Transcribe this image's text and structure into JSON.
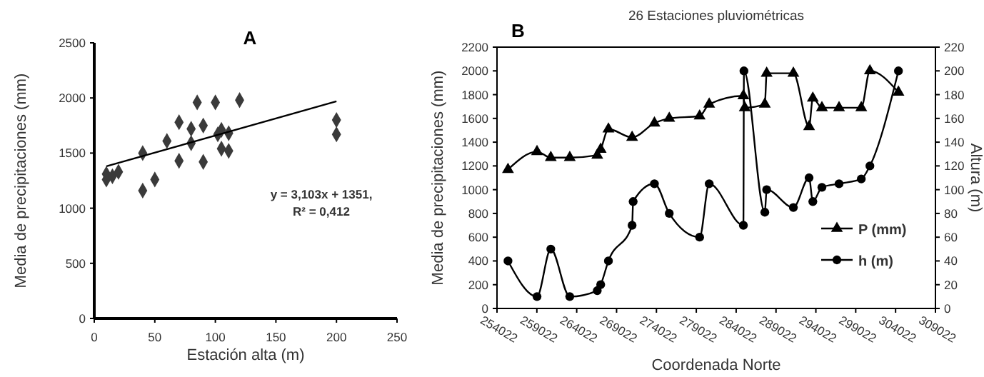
{
  "chart_data": [
    {
      "type": "scatter",
      "title": "A",
      "xlabel": "Estación alta (m)",
      "ylabel": "Media de precipitaciones (mm)",
      "xlim": [
        0,
        250
      ],
      "xticks": [
        0,
        50,
        100,
        150,
        200,
        250
      ],
      "ylim": [
        0,
        2500
      ],
      "yticks": [
        0,
        500,
        1000,
        1500,
        2000,
        2500
      ],
      "annotations": [
        "y = 3,103x + 1351,",
        "R² = 0,412"
      ],
      "series": [
        {
          "color": "#3a3a3a",
          "marker": "diamond",
          "x": [
            10,
            10,
            15,
            20,
            40,
            40,
            50,
            60,
            70,
            70,
            80,
            80,
            85,
            90,
            90,
            100,
            102,
            105,
            105,
            111,
            111,
            120,
            200,
            200
          ],
          "values": [
            1310,
            1260,
            1290,
            1330,
            1500,
            1160,
            1260,
            1610,
            1780,
            1430,
            1720,
            1590,
            1960,
            1750,
            1420,
            1960,
            1670,
            1710,
            1540,
            1680,
            1520,
            1980,
            1800,
            1670
          ]
        },
        {
          "type": "line",
          "color": "#000000",
          "x": [
            10,
            200
          ],
          "values": [
            1380,
            1970
          ]
        }
      ]
    },
    {
      "type": "line",
      "title": "26 Estaciones pluviométricas",
      "annotations": [
        "B"
      ],
      "xlabel": "Coordenada Norte",
      "ylabel": "Media de precipitaciones (mm)",
      "y2label": "Altura (m)",
      "xlim": [
        254022,
        309022
      ],
      "xticks": [
        254022,
        259022,
        264022,
        269022,
        274022,
        279022,
        284022,
        289022,
        294022,
        299022,
        304022,
        309022
      ],
      "ylim": [
        0,
        2200
      ],
      "yticks": [
        0,
        200,
        400,
        600,
        800,
        1000,
        1200,
        1400,
        1600,
        1800,
        2000,
        2200
      ],
      "y2lim": [
        0,
        220
      ],
      "y2ticks": [
        0,
        20,
        40,
        60,
        80,
        100,
        120,
        140,
        160,
        180,
        200,
        220
      ],
      "legend": "bottom right",
      "series": [
        {
          "name": "P (mm)",
          "color": "#000000",
          "marker": "triangle",
          "x": [
            255400,
            259040,
            260770,
            263150,
            266600,
            267030,
            268000,
            270970,
            273770,
            275630,
            279440,
            280640,
            284930,
            285100,
            287620,
            287850,
            291200,
            293170,
            293640,
            294780,
            296930,
            299720,
            300800,
            304380
          ],
          "values": [
            1170,
            1320,
            1270,
            1270,
            1290,
            1340,
            1510,
            1440,
            1560,
            1600,
            1620,
            1720,
            1790,
            1690,
            1720,
            1980,
            1980,
            1530,
            1770,
            1690,
            1690,
            1690,
            2000,
            1820
          ]
        },
        {
          "name": "h (m)",
          "color": "#000000",
          "marker": "circle",
          "axis": "y2",
          "x": [
            255400,
            259040,
            260770,
            263150,
            266600,
            267030,
            268000,
            270970,
            271100,
            273770,
            275630,
            279440,
            280640,
            284930,
            285000,
            287620,
            287850,
            291200,
            293170,
            293640,
            294780,
            296930,
            299720,
            300800,
            304380
          ],
          "values": [
            40,
            10,
            50,
            10,
            15,
            20,
            40,
            70,
            90,
            105,
            80,
            60,
            105,
            70,
            200,
            81,
            100,
            85,
            110,
            90,
            102,
            105,
            109,
            120,
            200
          ]
        }
      ]
    }
  ]
}
